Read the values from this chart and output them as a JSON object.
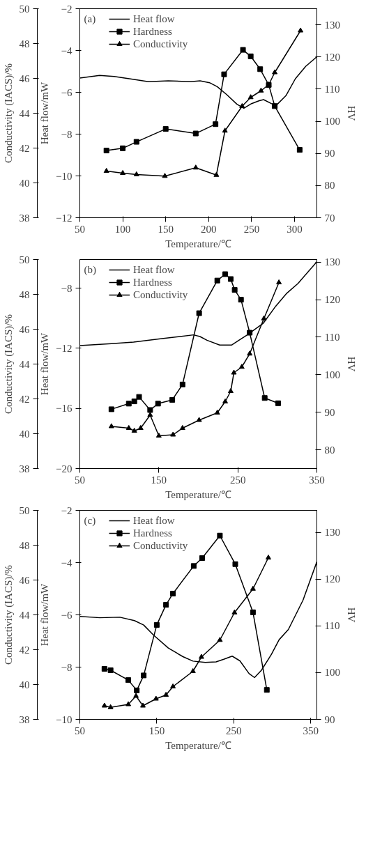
{
  "chart_data": [
    {
      "type": "line",
      "annotations": [
        "(a)"
      ],
      "xlabel": "Temperature/℃",
      "ylabel": "Heat flow/mW",
      "y2label": "HV",
      "y3label": "Conductivity (IACS)/%",
      "xlim": [
        50,
        326
      ],
      "xticks": [
        50,
        100,
        150,
        200,
        250,
        300
      ],
      "ylim": [
        -12,
        -2
      ],
      "yticks": [
        -12,
        -10,
        -8,
        -6,
        -4,
        -2
      ],
      "y2lim": [
        70,
        135
      ],
      "y2ticks": [
        70,
        80,
        90,
        100,
        110,
        120,
        130
      ],
      "y3lim": [
        38,
        50
      ],
      "y3ticks": [
        38,
        40,
        42,
        44,
        46,
        48,
        50
      ],
      "grid": false,
      "legend": "top left",
      "line_style": "solid",
      "series": [
        {
          "name": "Heat flow",
          "color": "#000000",
          "marker": "none",
          "x": [
            50,
            73,
            90,
            113,
            130,
            153,
            179,
            190,
            201,
            210,
            221,
            233,
            241,
            250,
            259,
            264,
            273,
            280,
            290,
            301,
            313,
            326
          ],
          "values": [
            -5.32,
            -5.19,
            -5.24,
            -5.38,
            -5.49,
            -5.45,
            -5.49,
            -5.45,
            -5.54,
            -5.73,
            -6.11,
            -6.57,
            -6.76,
            -6.54,
            -6.4,
            -6.35,
            -6.54,
            -6.57,
            -6.16,
            -5.35,
            -4.76,
            -4.3
          ]
        },
        {
          "name": "Hardness",
          "color": "#000000",
          "marker": "square",
          "axis": "y2",
          "x": [
            81,
            100,
            116,
            150,
            185,
            208,
            218,
            240,
            249,
            260,
            270,
            277,
            306
          ],
          "values": [
            90.9,
            91.6,
            93.6,
            97.6,
            96.2,
            99.1,
            114.6,
            122.2,
            120.2,
            116.2,
            111.3,
            104.7,
            91.1
          ]
        },
        {
          "name": "Conductivity",
          "color": "#000000",
          "marker": "triangle",
          "axis": "y3",
          "x": [
            81,
            100,
            116,
            149,
            185,
            209,
            219,
            239,
            249,
            261,
            270,
            277,
            307
          ],
          "values": [
            40.68,
            40.56,
            40.48,
            40.39,
            40.87,
            40.45,
            42.99,
            44.4,
            44.91,
            45.29,
            45.64,
            46.34,
            48.74
          ]
        }
      ]
    },
    {
      "type": "line",
      "annotations": [
        "(b)"
      ],
      "xlabel": "Temperature/℃",
      "ylabel": "Heat flow/mW",
      "y2label": "HV",
      "y3label": "Conductivity (IACS)/%",
      "xlim": [
        50,
        350
      ],
      "xticks": [
        50,
        150,
        250,
        350
      ],
      "ylim": [
        -20,
        -6.1
      ],
      "yticks": [
        -20,
        -16,
        -12,
        -8
      ],
      "y2lim": [
        75,
        130.7
      ],
      "y2ticks": [
        80,
        90,
        100,
        110,
        120,
        130
      ],
      "y3lim": [
        38,
        50
      ],
      "y3ticks": [
        38,
        40,
        42,
        44,
        46,
        48,
        50
      ],
      "grid": false,
      "legend": "top left",
      "line_style": "solid",
      "series": [
        {
          "name": "Heat flow",
          "color": "#000000",
          "marker": "none",
          "x": [
            50,
            90,
            118,
            152,
            177,
            194,
            202,
            211,
            227,
            242,
            250,
            261,
            282,
            298,
            312,
            326,
            350
          ],
          "values": [
            -11.82,
            -11.7,
            -11.59,
            -11.37,
            -11.22,
            -11.11,
            -11.22,
            -11.47,
            -11.79,
            -11.79,
            -11.52,
            -11.14,
            -10.35,
            -9.2,
            -8.34,
            -7.7,
            -6.25
          ]
        },
        {
          "name": "Hardness",
          "color": "#000000",
          "marker": "square",
          "axis": "y2",
          "x": [
            90,
            112,
            119,
            125,
            139,
            149,
            167,
            180,
            201,
            224,
            234,
            241,
            246,
            254,
            265,
            284,
            301
          ],
          "values": [
            90.8,
            92.3,
            92.9,
            94.1,
            90.6,
            92.3,
            93.3,
            97.4,
            116.4,
            125.1,
            126.8,
            125.5,
            122.6,
            120.0,
            111.2,
            93.8,
            92.4
          ]
        },
        {
          "name": "Conductivity",
          "color": "#000000",
          "marker": "triangle",
          "axis": "y3",
          "x": [
            90,
            112,
            119,
            127,
            139,
            150,
            168,
            180,
            201,
            224,
            234,
            241,
            245,
            255,
            265,
            283,
            302
          ],
          "values": [
            40.42,
            40.32,
            40.16,
            40.32,
            41.07,
            39.88,
            39.94,
            40.32,
            40.78,
            41.2,
            41.84,
            42.44,
            43.5,
            43.83,
            44.59,
            46.61,
            48.68
          ]
        }
      ]
    },
    {
      "type": "line",
      "annotations": [
        "(c)"
      ],
      "xlabel": "Temperature/℃",
      "ylabel": "Heat flow/mW",
      "y2label": "HV",
      "y3label": "Conductivity (IACS)/%",
      "xlim": [
        50,
        358
      ],
      "xticks": [
        50,
        150,
        250,
        350
      ],
      "ylim": [
        -10,
        -2
      ],
      "yticks": [
        -10,
        -8,
        -6,
        -4,
        -2
      ],
      "y2lim": [
        90,
        134.7
      ],
      "y2ticks": [
        90,
        100,
        110,
        120,
        130
      ],
      "y3lim": [
        38,
        50
      ],
      "y3ticks": [
        38,
        40,
        42,
        44,
        46,
        48,
        50
      ],
      "grid": false,
      "legend": "top left",
      "line_style": "solid",
      "series": [
        {
          "name": "Heat flow",
          "color": "#000000",
          "marker": "none",
          "x": [
            50,
            76,
            102,
            121,
            133,
            146,
            165,
            184,
            197,
            213,
            227,
            237,
            248,
            258,
            270,
            277,
            286,
            299,
            309,
            321,
            340,
            358
          ],
          "values": [
            -6.06,
            -6.11,
            -6.09,
            -6.22,
            -6.39,
            -6.78,
            -7.27,
            -7.6,
            -7.77,
            -7.82,
            -7.8,
            -7.7,
            -7.58,
            -7.76,
            -8.25,
            -8.4,
            -8.12,
            -7.51,
            -6.95,
            -6.56,
            -5.44,
            -3.97
          ]
        },
        {
          "name": "Hardness",
          "color": "#000000",
          "marker": "square",
          "axis": "y2",
          "x": [
            82,
            90,
            113,
            124,
            133,
            150,
            162,
            171,
            198,
            209,
            232,
            252,
            275,
            293
          ],
          "values": [
            100.8,
            100.5,
            98.4,
            96.2,
            99.4,
            110.2,
            114.5,
            116.9,
            122.8,
            124.5,
            129.3,
            123.2,
            112.9,
            96.3
          ]
        },
        {
          "name": "Conductivity",
          "color": "#000000",
          "marker": "triangle",
          "axis": "y3",
          "x": [
            82,
            90,
            113,
            123,
            132,
            149,
            162,
            171,
            197,
            208,
            232,
            251,
            275,
            295
          ],
          "values": [
            38.78,
            38.69,
            38.86,
            39.34,
            38.78,
            39.18,
            39.4,
            39.88,
            40.76,
            41.58,
            42.55,
            44.13,
            45.49,
            47.28
          ]
        }
      ]
    }
  ]
}
